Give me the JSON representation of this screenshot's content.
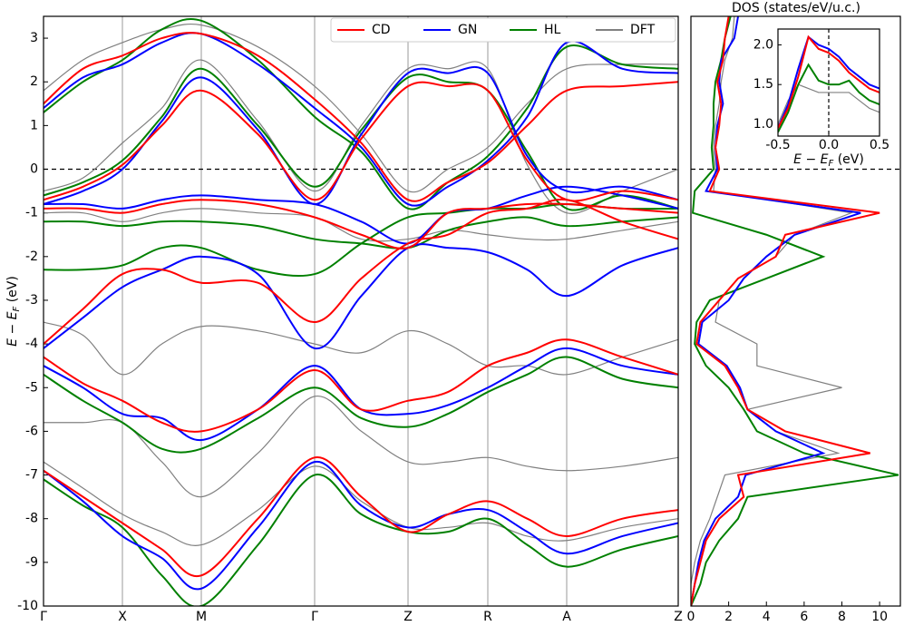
{
  "chart_data": [
    {
      "type": "line",
      "ylabel": "E − E",
      "ylabel_sub": "F",
      "ylabel_unit": " (eV)",
      "x": [
        0,
        43.5,
        87,
        130.5,
        174,
        236.5,
        299,
        350.5,
        402,
        446,
        490,
        533.5,
        577,
        638.5,
        700
      ],
      "xlim": [
        0,
        700
      ],
      "xticks": [
        {
          "value": 0,
          "label": "Γ"
        },
        {
          "value": 87,
          "label": "X"
        },
        {
          "value": 174,
          "label": "M"
        },
        {
          "value": 299,
          "label": "Γ"
        },
        {
          "value": 402,
          "label": "Z"
        },
        {
          "value": 490,
          "label": "R"
        },
        {
          "value": 577,
          "label": "A"
        },
        {
          "value": 700,
          "label": "Z"
        }
      ],
      "ylim": [
        -10,
        3.5
      ],
      "yticks": [
        -10,
        -9,
        -8,
        -7,
        -6,
        -5,
        -4,
        -3,
        -2,
        -1,
        0,
        1,
        2,
        3
      ],
      "legend": "upper right",
      "series": [
        {
          "name": "CD",
          "color": "#ff0000",
          "bands": [
            [
              -0.7,
              -0.4,
              0.1,
              1.0,
              1.8,
              0.8,
              -0.7,
              0.7,
              1.9,
              1.9,
              1.8,
              0.2,
              -0.7,
              -0.5,
              -0.7
            ],
            [
              1.5,
              2.3,
              2.6,
              3.0,
              3.1,
              2.6,
              1.6,
              0.6,
              -0.7,
              -0.3,
              0.15,
              1.0,
              1.8,
              1.9,
              2.0
            ],
            [
              -0.9,
              -0.9,
              -1.0,
              -0.8,
              -0.7,
              -0.8,
              -1.1,
              -1.5,
              -1.8,
              -1.0,
              -0.9,
              -0.8,
              -0.8,
              -0.9,
              -1.0
            ],
            [
              -4.0,
              -3.2,
              -2.4,
              -2.3,
              -2.6,
              -2.6,
              -3.5,
              -2.5,
              -1.7,
              -1.5,
              -1.0,
              -0.9,
              -0.7,
              -1.2,
              -1.6
            ],
            [
              -4.3,
              -4.9,
              -5.3,
              -5.8,
              -6.0,
              -5.5,
              -4.6,
              -5.5,
              -5.3,
              -5.1,
              -4.5,
              -4.2,
              -3.9,
              -4.3,
              -4.7
            ],
            [
              -6.9,
              -7.5,
              -8.1,
              -8.7,
              -9.3,
              -8.0,
              -6.6,
              -7.5,
              -8.3,
              -7.9,
              -7.6,
              -8.0,
              -8.4,
              -8.0,
              -7.8
            ]
          ]
        },
        {
          "name": "GN",
          "color": "#0000ff",
          "bands": [
            [
              -0.8,
              -0.5,
              0.0,
              1.1,
              2.1,
              0.9,
              -0.8,
              0.8,
              2.2,
              2.2,
              2.2,
              0.3,
              -0.5,
              -0.4,
              -0.7
            ],
            [
              1.4,
              2.1,
              2.4,
              2.9,
              3.1,
              2.4,
              1.4,
              0.5,
              -0.8,
              -0.4,
              0.2,
              1.2,
              2.9,
              2.3,
              2.2
            ],
            [
              -0.8,
              -0.8,
              -0.9,
              -0.7,
              -0.6,
              -0.7,
              -0.8,
              -1.2,
              -1.7,
              -1.0,
              -0.9,
              -0.6,
              -0.4,
              -0.6,
              -0.9
            ],
            [
              -4.1,
              -3.4,
              -2.7,
              -2.3,
              -2.0,
              -2.4,
              -4.1,
              -2.9,
              -1.8,
              -1.8,
              -1.9,
              -2.3,
              -2.9,
              -2.2,
              -1.8
            ],
            [
              -4.5,
              -5.0,
              -5.6,
              -5.7,
              -6.2,
              -5.5,
              -4.5,
              -5.5,
              -5.6,
              -5.4,
              -5.0,
              -4.5,
              -4.1,
              -4.5,
              -4.7
            ],
            [
              -6.9,
              -7.6,
              -8.4,
              -8.9,
              -9.6,
              -8.2,
              -6.7,
              -7.7,
              -8.2,
              -7.9,
              -7.8,
              -8.3,
              -8.8,
              -8.4,
              -8.1
            ]
          ]
        },
        {
          "name": "HL",
          "color": "#008000",
          "bands": [
            [
              -0.6,
              -0.3,
              0.2,
              1.2,
              2.3,
              1.0,
              -0.4,
              0.9,
              2.1,
              2.0,
              1.8,
              0.4,
              -0.9,
              -0.6,
              -0.9
            ],
            [
              1.3,
              2.0,
              2.5,
              3.2,
              3.4,
              2.5,
              1.2,
              0.4,
              -0.9,
              -0.3,
              0.3,
              1.4,
              2.8,
              2.4,
              2.3
            ],
            [
              -1.2,
              -1.2,
              -1.3,
              -1.2,
              -1.2,
              -1.3,
              -1.6,
              -1.7,
              -1.8,
              -1.4,
              -1.2,
              -1.1,
              -1.3,
              -1.2,
              -1.1
            ],
            [
              -2.3,
              -2.3,
              -2.2,
              -1.8,
              -1.8,
              -2.3,
              -2.4,
              -1.7,
              -1.1,
              -1.0,
              -0.9,
              -0.9,
              -0.8,
              -0.9,
              -0.9
            ],
            [
              -4.7,
              -5.3,
              -5.8,
              -6.4,
              -6.4,
              -5.7,
              -5.0,
              -5.7,
              -5.9,
              -5.6,
              -5.1,
              -4.7,
              -4.3,
              -4.8,
              -5.0
            ],
            [
              -7.1,
              -7.7,
              -8.2,
              -9.3,
              -10.0,
              -8.6,
              -7.0,
              -7.9,
              -8.3,
              -8.3,
              -8.0,
              -8.6,
              -9.1,
              -8.7,
              -8.4
            ]
          ]
        },
        {
          "name": "DFT",
          "color": "#808080",
          "bands": [
            [
              -0.5,
              -0.2,
              0.6,
              1.4,
              2.5,
              1.1,
              -0.5,
              1.0,
              2.3,
              2.3,
              2.3,
              0.1,
              -1.0,
              -0.5,
              0.0
            ],
            [
              1.8,
              2.5,
              2.9,
              3.2,
              3.3,
              2.8,
              1.9,
              0.8,
              -0.5,
              0.0,
              0.5,
              1.5,
              2.3,
              2.4,
              2.4
            ],
            [
              -1.0,
              -1.0,
              -1.2,
              -1.0,
              -0.9,
              -1.0,
              -1.1,
              -1.6,
              -1.6,
              -1.4,
              -1.5,
              -1.6,
              -1.6,
              -1.4,
              -1.2
            ],
            [
              -3.5,
              -3.8,
              -4.7,
              -4.0,
              -3.6,
              -3.7,
              -4.0,
              -4.2,
              -3.7,
              -4.0,
              -4.5,
              -4.5,
              -4.7,
              -4.3,
              -3.9
            ],
            [
              -5.8,
              -5.8,
              -5.8,
              -6.7,
              -7.5,
              -6.5,
              -5.2,
              -6.0,
              -6.7,
              -6.7,
              -6.6,
              -6.8,
              -6.9,
              -6.8,
              -6.6
            ],
            [
              -6.7,
              -7.3,
              -7.9,
              -8.3,
              -8.6,
              -7.8,
              -6.8,
              -7.6,
              -8.2,
              -8.2,
              -8.1,
              -8.4,
              -8.5,
              -8.2,
              -8.0
            ]
          ]
        }
      ]
    },
    {
      "type": "dos",
      "title": "DOS (states/eV/u.c.)",
      "energies": [
        -10,
        -9.5,
        -9,
        -8.5,
        -8,
        -7.5,
        -7,
        -6.5,
        -6,
        -5.5,
        -5,
        -4.5,
        -4,
        -3.5,
        -3,
        -2.5,
        -2,
        -1.5,
        -1,
        -0.5,
        0,
        0.5,
        1,
        1.5,
        2,
        2.5,
        3,
        3.5
      ],
      "xlim": [
        0,
        11.1
      ],
      "xticks": [
        0,
        2,
        4,
        6,
        8,
        10
      ],
      "series": [
        {
          "color": "#808080",
          "values": [
            0,
            0,
            0.2,
            0.5,
            1,
            1.4,
            1.8,
            7.8,
            4.5,
            3,
            8,
            3.5,
            3.5,
            1.3,
            1.5,
            2.5,
            4.5,
            5.5,
            8.5,
            1.2,
            1.3,
            1.2,
            1.3,
            1.5,
            1.6,
            1.8,
            2.2,
            2.3
          ]
        },
        {
          "color": "#008000",
          "values": [
            0,
            0.5,
            0.8,
            1.5,
            2.5,
            3,
            11,
            6,
            3.5,
            2.8,
            2,
            0.8,
            0.2,
            0.3,
            1,
            4,
            7,
            4,
            0.1,
            0.2,
            1.2,
            1.1,
            1.2,
            1.2,
            1.3,
            1.6,
            1.8,
            2.1
          ]
        },
        {
          "color": "#0000ff",
          "values": [
            0,
            0.2,
            0.4,
            0.7,
            1.3,
            2.5,
            2.9,
            7,
            4.5,
            3,
            2.6,
            1.9,
            0.4,
            0.6,
            2,
            2.8,
            4,
            5.5,
            9,
            0.8,
            1.4,
            1.3,
            1.4,
            1.7,
            1.5,
            1.6,
            2.3,
            2.5
          ]
        },
        {
          "color": "#ff0000",
          "values": [
            0,
            0.2,
            0.5,
            0.8,
            1.5,
            2.8,
            2.5,
            9.5,
            5,
            3,
            2.5,
            1.8,
            0.3,
            0.5,
            1.5,
            2.5,
            4.5,
            5,
            10,
            1,
            1.5,
            1.3,
            1.5,
            1.6,
            1.4,
            1.7,
            1.8,
            2
          ]
        }
      ]
    },
    {
      "type": "inset",
      "xlabel": "E − E",
      "xlabel_sub": "F",
      "xlabel_unit": " (eV)",
      "x": [
        -0.5,
        -0.4,
        -0.3,
        -0.2,
        -0.1,
        0,
        0.1,
        0.2,
        0.3,
        0.4,
        0.5
      ],
      "xlim": [
        -0.5,
        0.5
      ],
      "xticks": [
        -0.5,
        {
          "value": 0,
          "label": "0.0"
        },
        0.5
      ],
      "ylim": [
        0.85,
        2.2
      ],
      "yticks": [
        {
          "value": 1,
          "label": "1.0"
        },
        1.5,
        {
          "value": 2,
          "label": "2.0"
        }
      ],
      "series": [
        {
          "color": "#808080",
          "values": [
            1.0,
            1.3,
            1.5,
            1.45,
            1.4,
            1.4,
            1.4,
            1.4,
            1.3,
            1.2,
            1.15
          ]
        },
        {
          "color": "#008000",
          "values": [
            0.9,
            1.15,
            1.5,
            1.75,
            1.55,
            1.5,
            1.5,
            1.55,
            1.4,
            1.3,
            1.25
          ]
        },
        {
          "color": "#0000ff",
          "values": [
            0.95,
            1.25,
            1.7,
            2.1,
            2.0,
            1.95,
            1.85,
            1.7,
            1.6,
            1.5,
            1.45
          ]
        },
        {
          "color": "#ff0000",
          "values": [
            0.95,
            1.2,
            1.6,
            2.1,
            1.95,
            1.9,
            1.8,
            1.65,
            1.55,
            1.45,
            1.4
          ]
        }
      ]
    }
  ]
}
